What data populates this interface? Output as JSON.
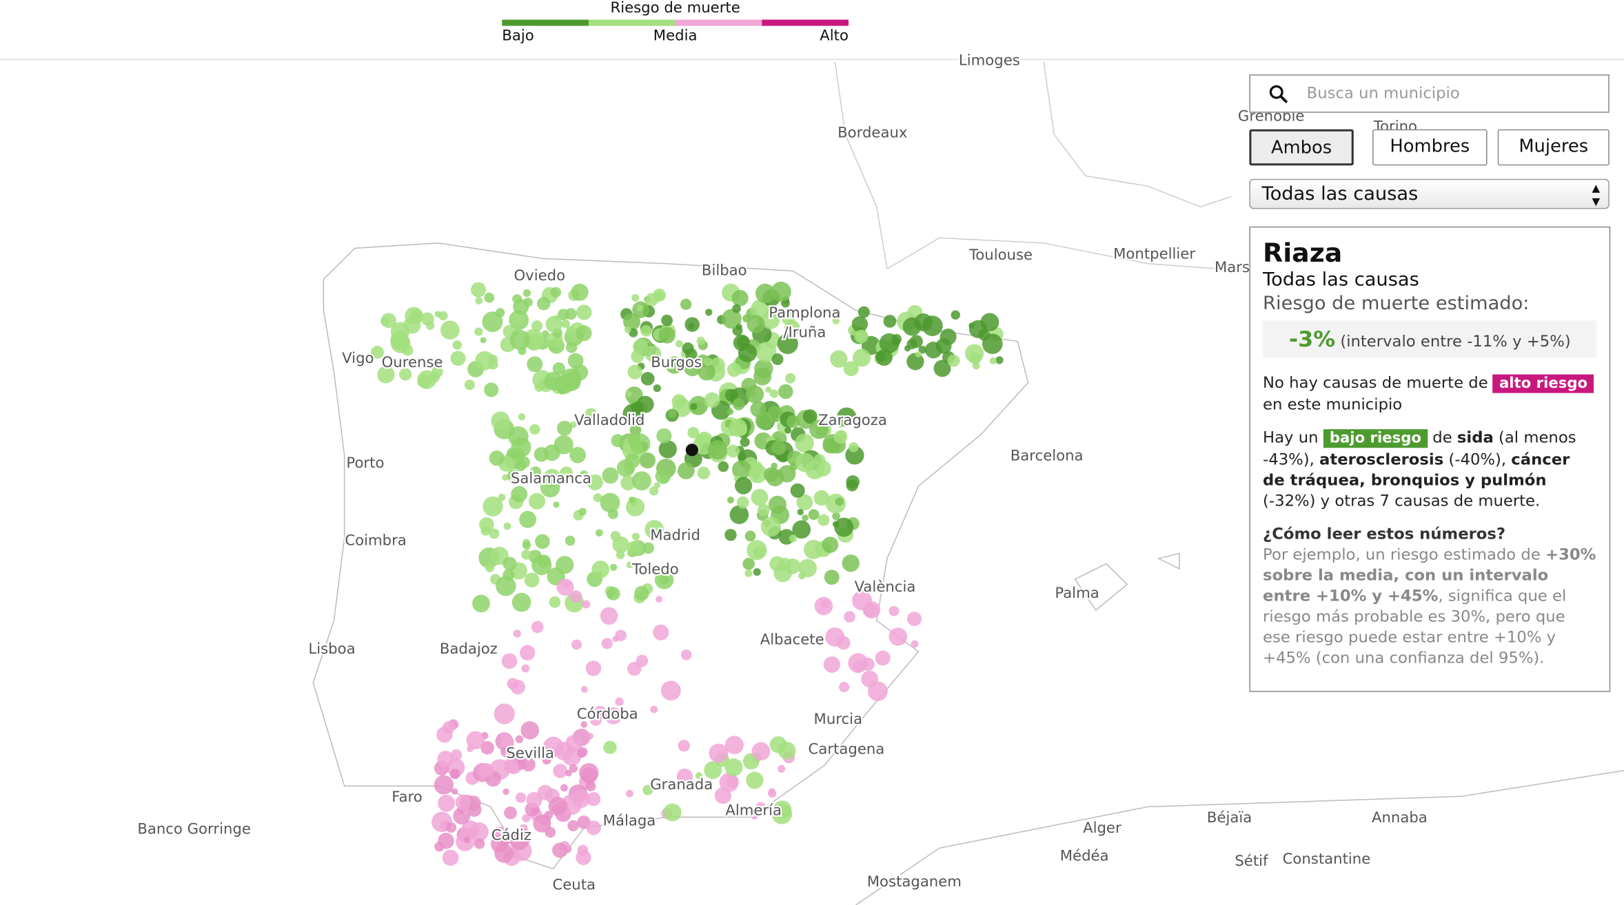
{
  "legend": {
    "title": "Riesgo de muerte",
    "labels": [
      "Bajo",
      "Media",
      "Alto"
    ]
  },
  "search": {
    "placeholder": "Busca un municipio"
  },
  "sex_buttons": [
    "Ambos",
    "Hombres",
    "Mujeres"
  ],
  "cause_select": "Todas las causas",
  "panel": {
    "municipality": "Riaza",
    "cause": "Todas las causas",
    "risk_label": "Riesgo de muerte estimado:",
    "risk_value": "-3%",
    "risk_interval": "(intervalo entre -11% y +5%)",
    "high_risk": [
      "No hay causas de muerte de ",
      "alto riesgo",
      " en este municipio"
    ],
    "low_risk": [
      "Hay un ",
      "bajo riesgo",
      " de ",
      "sida",
      " (al menos -43%), ",
      "aterosclerosis",
      " (-40%), ",
      "cáncer de tráquea, bronquios y pulmón",
      " (-32%) y otras 7 causas de muerte."
    ],
    "howto_title": "¿Cómo leer estos números?",
    "howto": [
      "Por ejemplo, un riesgo estimado de ",
      "+30% sobre la media, con un intervalo entre +10% y +45%",
      ", significa que el riesgo más probable es 30%, pero que ese riesgo puede estar entre +10% y +45% (con una confianza del 95%)."
    ]
  },
  "places": [
    "Limoges",
    "Bordeaux",
    "Grenoble",
    "Torino",
    "Toulouse",
    "Montpellier",
    "Marseille",
    "Oviedo",
    "Bilbao",
    "Pamplona",
    "/Iruña",
    "Vigo",
    "Ourense",
    "Burgos",
    "Valladolid",
    "Zaragoza",
    "Barcelona",
    "Porto",
    "Salamanca",
    "Coimbra",
    "Madrid",
    "Toledo",
    "València",
    "Palma",
    "Lisboa",
    "Badajoz",
    "Albacete",
    "Córdoba",
    "Murcia",
    "Cartagena",
    "Sevilla",
    "Granada",
    "Faro",
    "Almería",
    "Banco Gorringe",
    "Cádiz",
    "Málaga",
    "Ceuta",
    "Alger",
    "Médéa",
    "Béjaïa",
    "Sétif",
    "Constantine",
    "Annaba",
    "Mostaganem"
  ]
}
